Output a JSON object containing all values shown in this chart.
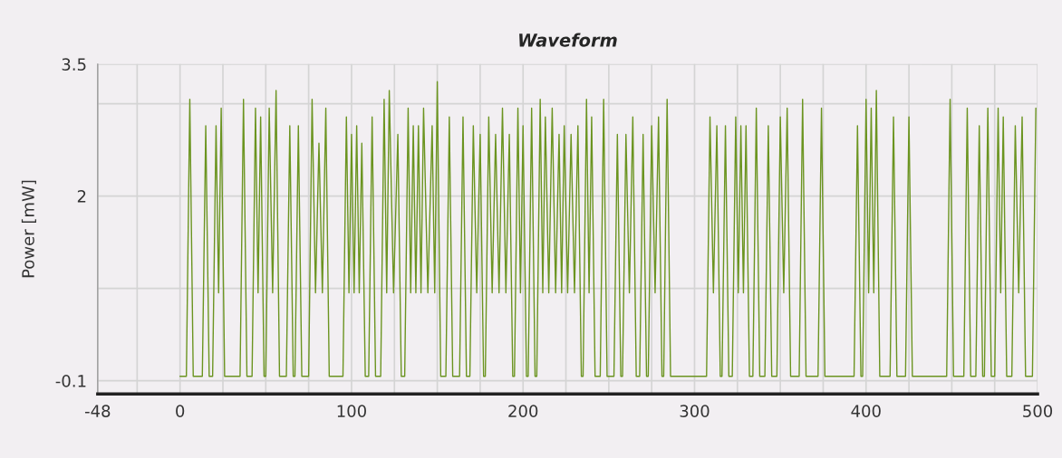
{
  "chart_data": {
    "type": "line",
    "title": "Waveform",
    "ylabel": "Power [mW]",
    "xlim": [
      -48,
      500
    ],
    "xticks": [
      -48,
      {
        "value": -25,
        "label": null
      },
      0,
      {
        "value": 25,
        "label": null
      },
      {
        "value": 50,
        "label": null
      },
      {
        "value": 75,
        "label": null
      },
      100,
      {
        "value": 125,
        "label": null
      },
      {
        "value": 150,
        "label": null
      },
      {
        "value": 175,
        "label": null
      },
      200,
      {
        "value": 225,
        "label": null
      },
      {
        "value": 250,
        "label": null
      },
      {
        "value": 275,
        "label": null
      },
      300,
      {
        "value": 325,
        "label": null
      },
      {
        "value": 350,
        "label": null
      },
      {
        "value": 375,
        "label": null
      },
      400,
      {
        "value": 425,
        "label": null
      },
      {
        "value": 450,
        "label": null
      },
      {
        "value": 475,
        "label": null
      },
      500
    ],
    "ylim": [
      -0.25,
      3.5
    ],
    "yticks": [
      -0.1,
      {
        "value": 0.95,
        "label": null
      },
      2,
      {
        "value": 3.05,
        "label": null
      },
      3.5
    ],
    "grid": true,
    "series": [
      {
        "color": "#6b9420",
        "x": [
          0,
          3.7,
          5.7,
          7.7,
          13,
          15,
          17,
          19,
          21,
          22.5,
          24,
          26,
          35,
          37,
          39,
          42,
          44,
          45.5,
          47,
          49,
          50,
          52,
          54,
          56,
          58,
          62,
          64,
          66,
          67,
          69,
          71,
          75,
          77,
          79,
          81,
          83,
          85,
          87,
          95,
          97,
          98.5,
          100,
          101.5,
          103,
          104.5,
          106,
          108,
          110,
          112,
          114,
          117,
          119,
          120.5,
          122,
          124.5,
          127,
          129,
          131,
          133,
          134.5,
          136,
          137.5,
          139,
          140.5,
          142,
          144.5,
          147,
          148.5,
          150,
          152,
          155,
          157,
          159,
          163,
          165,
          167,
          169,
          171,
          173,
          175,
          177,
          178,
          180,
          182,
          184,
          186,
          188,
          190,
          192,
          194,
          195,
          197,
          198.5,
          200,
          202,
          203,
          205,
          207,
          208,
          210,
          211.5,
          213,
          215,
          217,
          219,
          221,
          222.5,
          224,
          226,
          228,
          230,
          232,
          234,
          235,
          237,
          238.5,
          240,
          242,
          245,
          247,
          249,
          253,
          255,
          257,
          258,
          260,
          262,
          264,
          266,
          268,
          270,
          272,
          273,
          275,
          277,
          279,
          281,
          282,
          284,
          286,
          307,
          309,
          311,
          313,
          315,
          316,
          318,
          320,
          322,
          324,
          325.5,
          327,
          328.5,
          330,
          332,
          334,
          336,
          338,
          341,
          343,
          345,
          348,
          350,
          352,
          354,
          356,
          361,
          363,
          365,
          372,
          374,
          376,
          393,
          395,
          397,
          398,
          400,
          401.5,
          403,
          404.5,
          406,
          408,
          414,
          416,
          418,
          423,
          425,
          427,
          447,
          449,
          451,
          457,
          459,
          461,
          464,
          466,
          468,
          469,
          471,
          473,
          475,
          477,
          478.5,
          480,
          482,
          485,
          487,
          489,
          491,
          493,
          497,
          499
        ],
        "values": [
          -0.05,
          -0.05,
          3.1,
          -0.05,
          -0.05,
          2.8,
          -0.05,
          -0.05,
          2.8,
          0.9,
          3.0,
          -0.05,
          -0.05,
          3.1,
          -0.05,
          -0.05,
          3.0,
          0.9,
          2.9,
          -0.05,
          -0.05,
          3.0,
          0.9,
          3.2,
          -0.05,
          -0.05,
          2.8,
          -0.05,
          -0.05,
          2.8,
          -0.05,
          -0.05,
          3.1,
          0.9,
          2.6,
          0.9,
          3.0,
          -0.05,
          -0.05,
          2.9,
          0.9,
          2.7,
          0.9,
          2.8,
          0.9,
          2.6,
          -0.05,
          -0.05,
          2.9,
          -0.05,
          -0.05,
          3.1,
          0.9,
          3.2,
          0.9,
          2.7,
          -0.05,
          -0.05,
          3.0,
          0.9,
          2.8,
          0.9,
          2.8,
          0.9,
          3.0,
          0.9,
          2.8,
          0.9,
          3.3,
          -0.05,
          -0.05,
          2.9,
          -0.05,
          -0.05,
          2.9,
          -0.05,
          -0.05,
          2.8,
          0.9,
          2.7,
          -0.05,
          -0.05,
          2.9,
          0.9,
          2.7,
          0.9,
          3.0,
          0.9,
          2.7,
          -0.05,
          -0.05,
          3.0,
          0.9,
          2.8,
          -0.05,
          -0.05,
          3.0,
          -0.05,
          -0.05,
          3.1,
          0.9,
          2.9,
          0.9,
          3.0,
          0.9,
          2.7,
          0.9,
          2.8,
          0.9,
          2.7,
          0.9,
          2.8,
          -0.05,
          -0.05,
          3.1,
          0.9,
          2.9,
          -0.05,
          -0.05,
          3.1,
          -0.05,
          -0.05,
          2.7,
          -0.05,
          -0.05,
          2.7,
          0.9,
          2.9,
          -0.05,
          -0.05,
          2.7,
          -0.05,
          -0.05,
          2.8,
          0.9,
          2.9,
          -0.05,
          -0.05,
          3.1,
          -0.05,
          -0.05,
          2.9,
          0.9,
          2.8,
          -0.05,
          -0.05,
          2.8,
          -0.05,
          -0.05,
          2.9,
          0.9,
          2.8,
          0.9,
          2.8,
          -0.05,
          -0.05,
          3.0,
          -0.05,
          -0.05,
          2.8,
          -0.05,
          -0.05,
          2.9,
          0.9,
          3.0,
          -0.05,
          -0.05,
          3.1,
          -0.05,
          -0.05,
          3.0,
          -0.05,
          -0.05,
          2.8,
          -0.05,
          -0.05,
          3.1,
          0.9,
          3.0,
          0.9,
          3.2,
          -0.05,
          -0.05,
          2.9,
          -0.05,
          -0.05,
          2.9,
          -0.05,
          -0.05,
          3.1,
          -0.05,
          -0.05,
          3.0,
          -0.05,
          -0.05,
          2.8,
          -0.05,
          -0.05,
          3.0,
          -0.05,
          -0.05,
          3.0,
          0.9,
          2.9,
          -0.05,
          -0.05,
          2.8,
          0.9,
          2.9,
          -0.05,
          -0.05,
          3.0
        ]
      }
    ]
  }
}
